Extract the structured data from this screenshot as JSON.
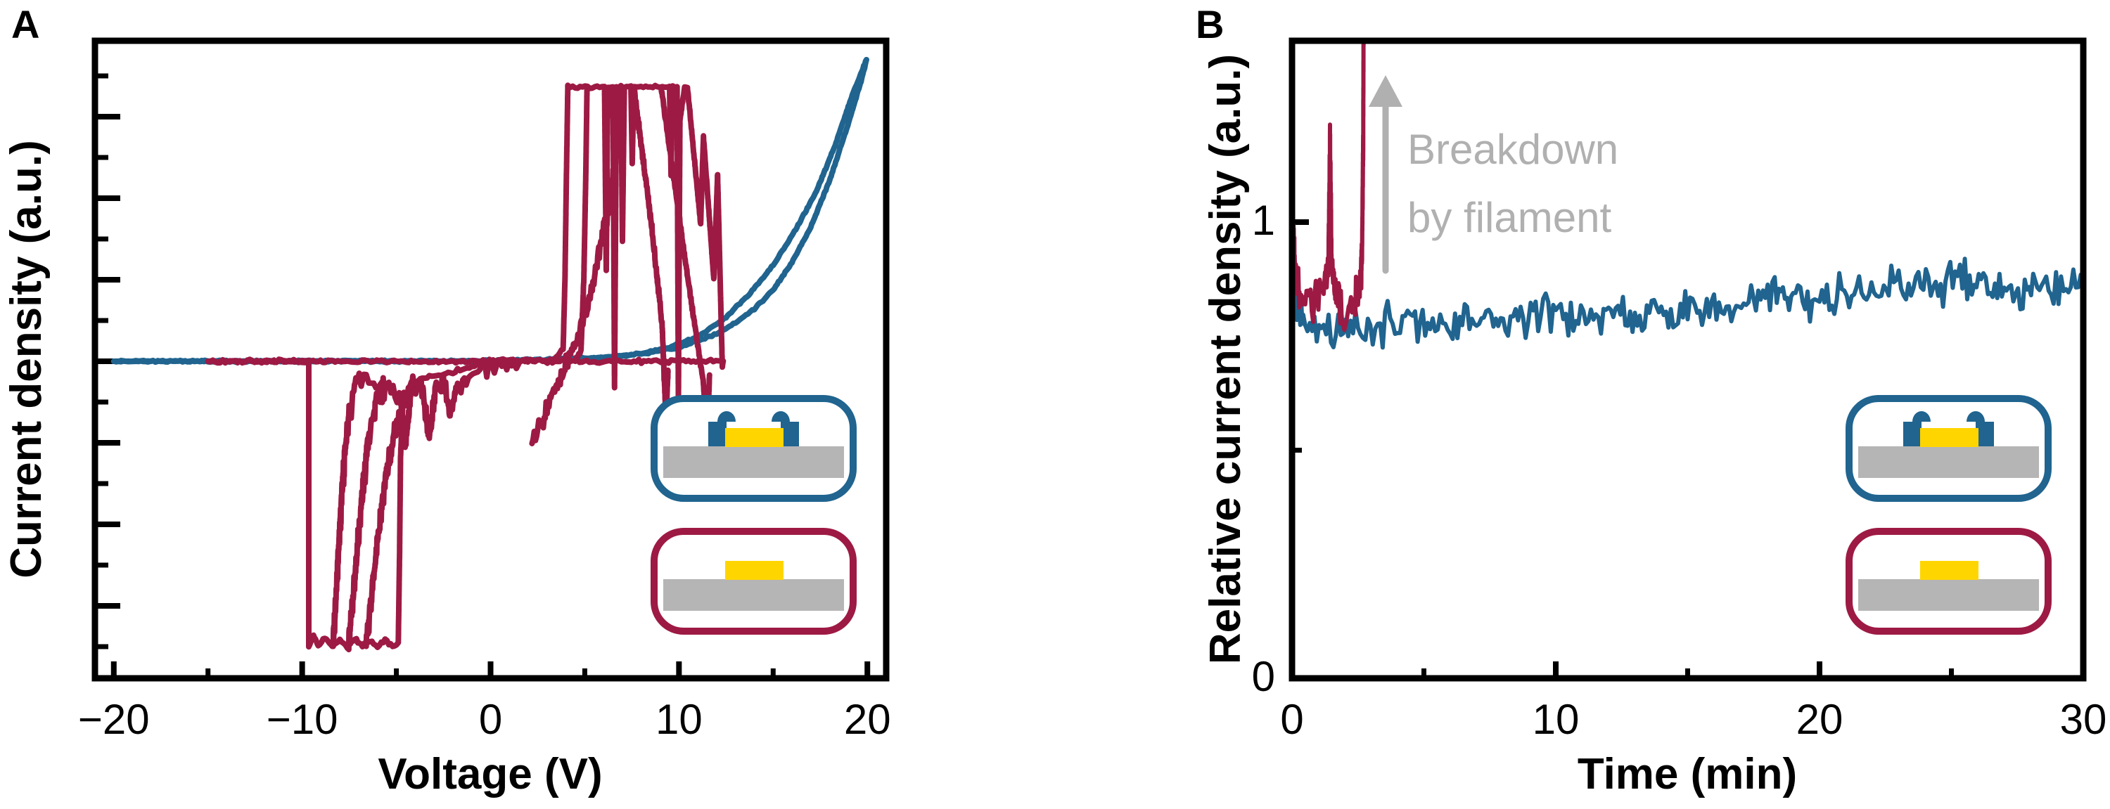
{
  "figure": {
    "background": "#ffffff"
  },
  "colors": {
    "axis_black": "#000000",
    "blue_series": "#20648f",
    "red_series": "#9d1a44",
    "substrate_gray": "#b5b5b5",
    "gold": "#ffd500",
    "annotation_gray": "#b0b0b0"
  },
  "panels": [
    {
      "label": "A",
      "x_axis": {
        "label": "Voltage (V)",
        "range": [
          -21,
          21
        ],
        "major_ticks": [
          {
            "v": -20,
            "label": "−20"
          },
          {
            "v": -10,
            "label": "−10"
          },
          {
            "v": 0,
            "label": "0"
          },
          {
            "v": 10,
            "label": "10"
          },
          {
            "v": 20,
            "label": "20"
          }
        ],
        "minor_ticks": [
          -15,
          -5,
          5,
          15
        ]
      },
      "y_axis": {
        "label": "Current density (a.u.)",
        "numbered": false
      },
      "insets": [
        {
          "name": "inset-device-with-top-contacts",
          "outline": "#20648f",
          "has_contacts": true
        },
        {
          "name": "inset-device-plain",
          "outline": "#9d1a44",
          "has_contacts": false
        }
      ]
    },
    {
      "label": "B",
      "x_axis": {
        "label": "Time (min)",
        "range": [
          0,
          30
        ],
        "major_ticks": [
          {
            "v": 0,
            "label": "0"
          },
          {
            "v": 10,
            "label": "10"
          },
          {
            "v": 20,
            "label": "20"
          },
          {
            "v": 30,
            "label": "30"
          }
        ],
        "minor_ticks": [
          5,
          15,
          25
        ]
      },
      "y_axis": {
        "label": "Relative current density (a.u.)",
        "range": [
          0,
          1.4
        ],
        "major_ticks": [
          {
            "v": 0,
            "label": "0"
          },
          {
            "v": 1,
            "label": "1"
          }
        ],
        "minor_ticks": [
          0.5
        ]
      },
      "annotation": {
        "line1": "Breakdown",
        "line2": "by filament",
        "arrow": {
          "t": 3.55,
          "from_value": 0.88,
          "to_value": 1.29
        }
      },
      "insets": [
        {
          "name": "inset-device-with-top-contacts",
          "outline": "#20648f",
          "has_contacts": true
        },
        {
          "name": "inset-device-plain",
          "outline": "#9d1a44",
          "has_contacts": false
        }
      ]
    }
  ],
  "chart_data": [
    {
      "type": "line",
      "xlabel": "Voltage (V)",
      "ylabel": "Current density (a.u.)",
      "xlim": [
        -21,
        21
      ],
      "ylim_units": "a.u. relative: 0 = zero-current baseline, 1 = compliance plateau",
      "grid": false,
      "series": [
        {
          "name": "patterned-device-iv-forward",
          "color": "#20648f",
          "width": 8,
          "noise": 0.004,
          "seed": 11,
          "points": [
            [
              -20,
              0
            ],
            [
              -10,
              0
            ],
            [
              -3,
              0
            ],
            [
              0,
              0.002
            ],
            [
              3,
              0.006
            ],
            [
              6,
              0.014
            ],
            [
              8,
              0.026
            ],
            [
              10,
              0.05
            ],
            [
              12,
              0.1
            ],
            [
              13,
              0.14
            ],
            [
              14,
              0.19
            ],
            [
              15,
              0.26
            ],
            [
              16,
              0.36
            ],
            [
              17,
              0.49
            ],
            [
              18,
              0.66
            ],
            [
              19,
              0.87
            ],
            [
              19.7,
              1.03
            ],
            [
              19.95,
              1.1
            ]
          ]
        },
        {
          "name": "patterned-device-iv-return",
          "color": "#20648f",
          "width": 8,
          "noise": 0.004,
          "seed": 12,
          "points": [
            [
              19.95,
              1.1
            ],
            [
              19.2,
              0.97
            ],
            [
              18.3,
              0.79
            ],
            [
              17.3,
              0.62
            ],
            [
              16.2,
              0.48
            ],
            [
              15,
              0.35
            ],
            [
              13.8,
              0.25
            ],
            [
              12.5,
              0.16
            ],
            [
              11,
              0.09
            ],
            [
              9.5,
              0.05
            ],
            [
              8,
              0.028
            ],
            [
              6,
              0.013
            ],
            [
              3,
              0.005
            ],
            [
              0,
              0.001
            ],
            [
              -20,
              0
            ]
          ]
        },
        {
          "name": "plain-device-iv-cycle1",
          "color": "#9d1a44",
          "width": 8,
          "noise": 0.008,
          "seed": 21,
          "points": [
            [
              -15,
              0
            ],
            [
              -5,
              0
            ],
            [
              0,
              0
            ],
            [
              3.3,
              0.005
            ],
            [
              3.85,
              0.04
            ],
            [
              3.95,
              0.3
            ],
            [
              4.02,
              0.65
            ],
            [
              4.1,
              1.0
            ],
            [
              6.05,
              1.0
            ],
            [
              6.14,
              0.33
            ],
            [
              6.22,
              1.0
            ],
            [
              6.5,
              1.0
            ],
            [
              6.58,
              -0.1
            ],
            [
              6.68,
              1.0
            ],
            [
              6.92,
              1.0
            ],
            [
              7.0,
              0.44
            ],
            [
              7.1,
              1.0
            ],
            [
              7.45,
              1.0
            ],
            [
              7.52,
              0.72
            ],
            [
              7.6,
              1.0
            ],
            [
              9.5,
              1.0
            ],
            [
              9.58,
              0.68
            ],
            [
              9.66,
              1.0
            ],
            [
              9.9,
              1.0
            ],
            [
              9.97,
              -0.15
            ],
            [
              10.05,
              0.88
            ],
            [
              10.3,
              1.0
            ],
            [
              10.45,
              1.0
            ],
            [
              11.15,
              0.5
            ],
            [
              11.3,
              0.82
            ],
            [
              11.85,
              0.3
            ],
            [
              12.05,
              0.68
            ],
            [
              12.3,
              -0.02
            ],
            [
              12.35,
              0
            ],
            [
              8,
              0
            ],
            [
              0,
              0
            ]
          ]
        },
        {
          "name": "plain-device-set-transition",
          "color": "#9d1a44",
          "width": 8,
          "noise": 0.05,
          "seed": 22,
          "points": [
            [
              2.2,
              -0.3
            ],
            [
              2.8,
              -0.22
            ],
            [
              3.4,
              -0.12
            ],
            [
              4.0,
              -0.02
            ],
            [
              4.6,
              0.08
            ],
            [
              5.2,
              0.22
            ],
            [
              5.8,
              0.4
            ],
            [
              6.3,
              0.58
            ],
            [
              6.7,
              0.78
            ],
            [
              6.95,
              0.95
            ],
            [
              7.05,
              1.0
            ]
          ]
        },
        {
          "name": "plain-device-set-steep2",
          "color": "#9d1a44",
          "width": 8,
          "noise": 0.008,
          "seed": 23,
          "points": [
            [
              4.5,
              0
            ],
            [
              4.8,
              0.04
            ],
            [
              4.95,
              0.3
            ],
            [
              5.05,
              0.66
            ],
            [
              5.12,
              1.0
            ]
          ]
        },
        {
          "name": "plain-device-reset-diag1",
          "color": "#9d1a44",
          "width": 8,
          "noise": 0.025,
          "seed": 24,
          "points": [
            [
              7.6,
              1.0
            ],
            [
              8.1,
              0.74
            ],
            [
              8.6,
              0.46
            ],
            [
              9.1,
              0.14
            ],
            [
              9.3,
              -0.2
            ],
            [
              9.42,
              -0.04
            ]
          ]
        },
        {
          "name": "plain-device-reset-diag2",
          "color": "#9d1a44",
          "width": 8,
          "noise": 0.012,
          "seed": 25,
          "points": [
            [
              9.05,
              1.0
            ],
            [
              9.8,
              0.63
            ],
            [
              10.6,
              0.24
            ],
            [
              11.3,
              -0.08
            ],
            [
              11.5,
              -0.3
            ],
            [
              11.62,
              -0.05
            ]
          ]
        },
        {
          "name": "plain-device-negative-breakdown",
          "color": "#9d1a44",
          "width": 8,
          "noise": 0.008,
          "seed": 26,
          "points": [
            [
              -15,
              0
            ],
            [
              -9.65,
              0
            ],
            [
              -9.65,
              -1.04
            ],
            [
              -9.4,
              -1.0
            ],
            [
              -9.15,
              -1.04
            ],
            [
              -8.8,
              -1.01
            ],
            [
              -8.4,
              -1.04
            ],
            [
              -8.0,
              -1.02
            ],
            [
              -7.6,
              -1.04
            ],
            [
              -7.2,
              -1.01
            ],
            [
              -6.8,
              -1.04
            ],
            [
              -6.4,
              -1.02
            ],
            [
              -6.0,
              -1.04
            ],
            [
              -5.6,
              -1.02
            ],
            [
              -5.2,
              -1.04
            ],
            [
              -4.9,
              -1.03
            ],
            [
              -4.83,
              -0.7
            ],
            [
              -4.78,
              -0.35
            ],
            [
              -4.65,
              -0.15
            ],
            [
              -4.2,
              -0.08
            ],
            [
              -3.5,
              -0.06
            ],
            [
              -2.5,
              -0.045
            ],
            [
              -1.5,
              -0.03
            ],
            [
              -0.5,
              -0.012
            ],
            [
              0,
              -0.005
            ]
          ]
        },
        {
          "name": "plain-device-recovery1",
          "color": "#9d1a44",
          "width": 8,
          "noise": 0.06,
          "seed": 27,
          "points": [
            [
              -8.35,
              -1.04
            ],
            [
              -8.15,
              -0.8
            ],
            [
              -7.95,
              -0.55
            ],
            [
              -7.75,
              -0.35
            ],
            [
              -7.5,
              -0.18
            ],
            [
              -7.15,
              -0.09
            ],
            [
              -6.8,
              -0.06
            ]
          ]
        },
        {
          "name": "plain-device-recovery2",
          "color": "#9d1a44",
          "width": 8,
          "noise": 0.06,
          "seed": 28,
          "points": [
            [
              -7.55,
              -1.04
            ],
            [
              -7.25,
              -0.82
            ],
            [
              -6.9,
              -0.55
            ],
            [
              -6.55,
              -0.32
            ],
            [
              -6.1,
              -0.16
            ],
            [
              -5.6,
              -0.08
            ]
          ]
        },
        {
          "name": "plain-device-recovery3",
          "color": "#9d1a44",
          "width": 8,
          "noise": 0.05,
          "seed": 29,
          "points": [
            [
              -6.6,
              -1.04
            ],
            [
              -6.3,
              -0.85
            ],
            [
              -5.95,
              -0.62
            ],
            [
              -5.55,
              -0.42
            ],
            [
              -5.1,
              -0.25
            ],
            [
              -4.6,
              -0.14
            ],
            [
              -4.05,
              -0.09
            ]
          ]
        },
        {
          "name": "plain-device-noisy-band",
          "color": "#9d1a44",
          "width": 8,
          "noise": 0.04,
          "seed": 30,
          "points": [
            [
              -7.0,
              -0.06
            ],
            [
              -6.2,
              -0.07
            ],
            [
              -5.4,
              -0.09
            ],
            [
              -4.85,
              -0.12
            ],
            [
              -4.5,
              -0.3
            ],
            [
              -4.25,
              -0.12
            ],
            [
              -3.7,
              -0.08
            ],
            [
              -3.25,
              -0.27
            ],
            [
              -2.95,
              -0.12
            ],
            [
              -2.5,
              -0.07
            ],
            [
              -2.15,
              -0.2
            ],
            [
              -1.75,
              -0.09
            ],
            [
              -1.3,
              -0.06
            ],
            [
              -0.8,
              -0.04
            ],
            [
              -0.2,
              -0.02
            ],
            [
              0.6,
              -0.012
            ],
            [
              1.5,
              -0.008
            ]
          ]
        }
      ]
    },
    {
      "type": "line",
      "xlabel": "Time (min)",
      "ylabel": "Relative current density (a.u.)",
      "xlim": [
        0,
        30
      ],
      "ylim": [
        0,
        1.4
      ],
      "grid": false,
      "series": [
        {
          "name": "patterned-device-stability",
          "color": "#20648f",
          "width": 6,
          "noise": 0.055,
          "seed": 41,
          "points": [
            [
              0,
              1.0
            ],
            [
              0.06,
              0.9
            ],
            [
              0.2,
              0.82
            ],
            [
              0.5,
              0.78
            ],
            [
              1.2,
              0.76
            ],
            [
              2.5,
              0.77
            ],
            [
              4,
              0.775
            ],
            [
              6,
              0.78
            ],
            [
              8,
              0.79
            ],
            [
              10,
              0.795
            ],
            [
              12,
              0.795
            ],
            [
              14,
              0.805
            ],
            [
              16,
              0.815
            ],
            [
              17.5,
              0.83
            ],
            [
              18.3,
              0.85
            ],
            [
              19,
              0.825
            ],
            [
              20,
              0.835
            ],
            [
              21.5,
              0.845
            ],
            [
              23,
              0.855
            ],
            [
              24.5,
              0.865
            ],
            [
              25.6,
              0.88
            ],
            [
              26.3,
              0.865
            ],
            [
              27.7,
              0.84
            ],
            [
              28.5,
              0.865
            ],
            [
              30,
              0.87
            ]
          ]
        },
        {
          "name": "plain-device-breakdown-trace",
          "color": "#9d1a44",
          "width": 6,
          "noise": 0.055,
          "seed": 42,
          "points": [
            [
              0.02,
              1.02
            ],
            [
              0.1,
              0.9
            ],
            [
              0.3,
              0.83
            ],
            [
              0.55,
              0.85
            ],
            [
              0.8,
              0.83
            ],
            [
              1.05,
              0.85
            ],
            [
              1.25,
              0.87
            ],
            [
              1.38,
              0.9
            ],
            [
              1.44,
              1.17
            ],
            [
              1.5,
              0.92
            ],
            [
              1.65,
              0.85
            ],
            [
              1.9,
              0.79
            ],
            [
              2.15,
              0.8
            ],
            [
              2.4,
              0.83
            ],
            [
              2.55,
              0.86
            ],
            [
              2.62,
              0.88
            ],
            [
              2.66,
              0.95
            ],
            [
              2.7,
              1.2
            ],
            [
              2.72,
              1.55
            ]
          ]
        }
      ]
    }
  ]
}
